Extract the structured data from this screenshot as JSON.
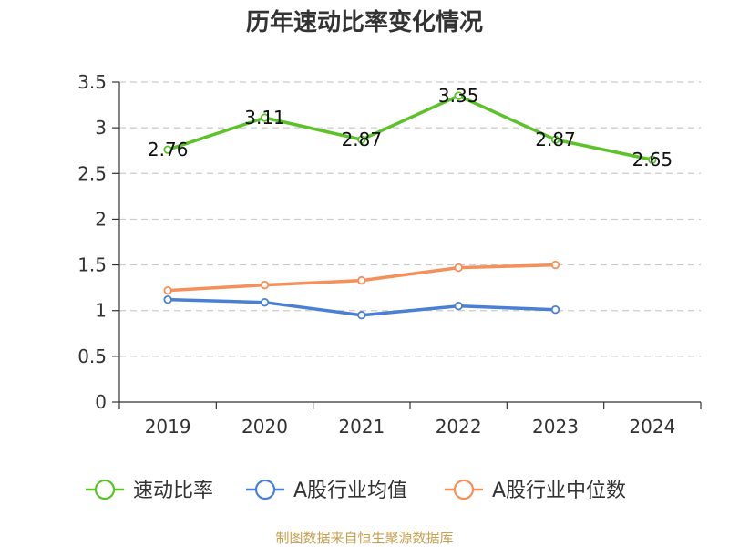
{
  "chart_data": {
    "type": "line",
    "title": "历年速动比率变化情况",
    "categories": [
      "2019",
      "2020",
      "2021",
      "2022",
      "2023",
      "2024"
    ],
    "ylim": [
      0,
      3.5
    ],
    "yticks": [
      0,
      0.5,
      1,
      1.5,
      2,
      2.5,
      3,
      3.5
    ],
    "ytick_labels": [
      "0",
      "0.5",
      "1",
      "1.5",
      "2",
      "2.5",
      "3",
      "3.5"
    ],
    "grid": true,
    "legend_position": "bottom",
    "series": [
      {
        "name": "速动比率",
        "color": "#5cc22a",
        "values": [
          2.76,
          3.11,
          2.87,
          3.35,
          2.87,
          2.65
        ],
        "labels": [
          "2.76",
          "3.11",
          "2.87",
          "3.35",
          "2.87",
          "2.65"
        ],
        "show_labels": true
      },
      {
        "name": "A股行业均值",
        "color": "#4a7fd6",
        "values": [
          1.12,
          1.09,
          0.95,
          1.05,
          1.01,
          null
        ],
        "show_labels": false
      },
      {
        "name": "A股行业中位数",
        "color": "#f5905a",
        "values": [
          1.22,
          1.28,
          1.33,
          1.47,
          1.5,
          null
        ],
        "show_labels": false
      }
    ],
    "source": "制图数据来自恒生聚源数据库"
  }
}
